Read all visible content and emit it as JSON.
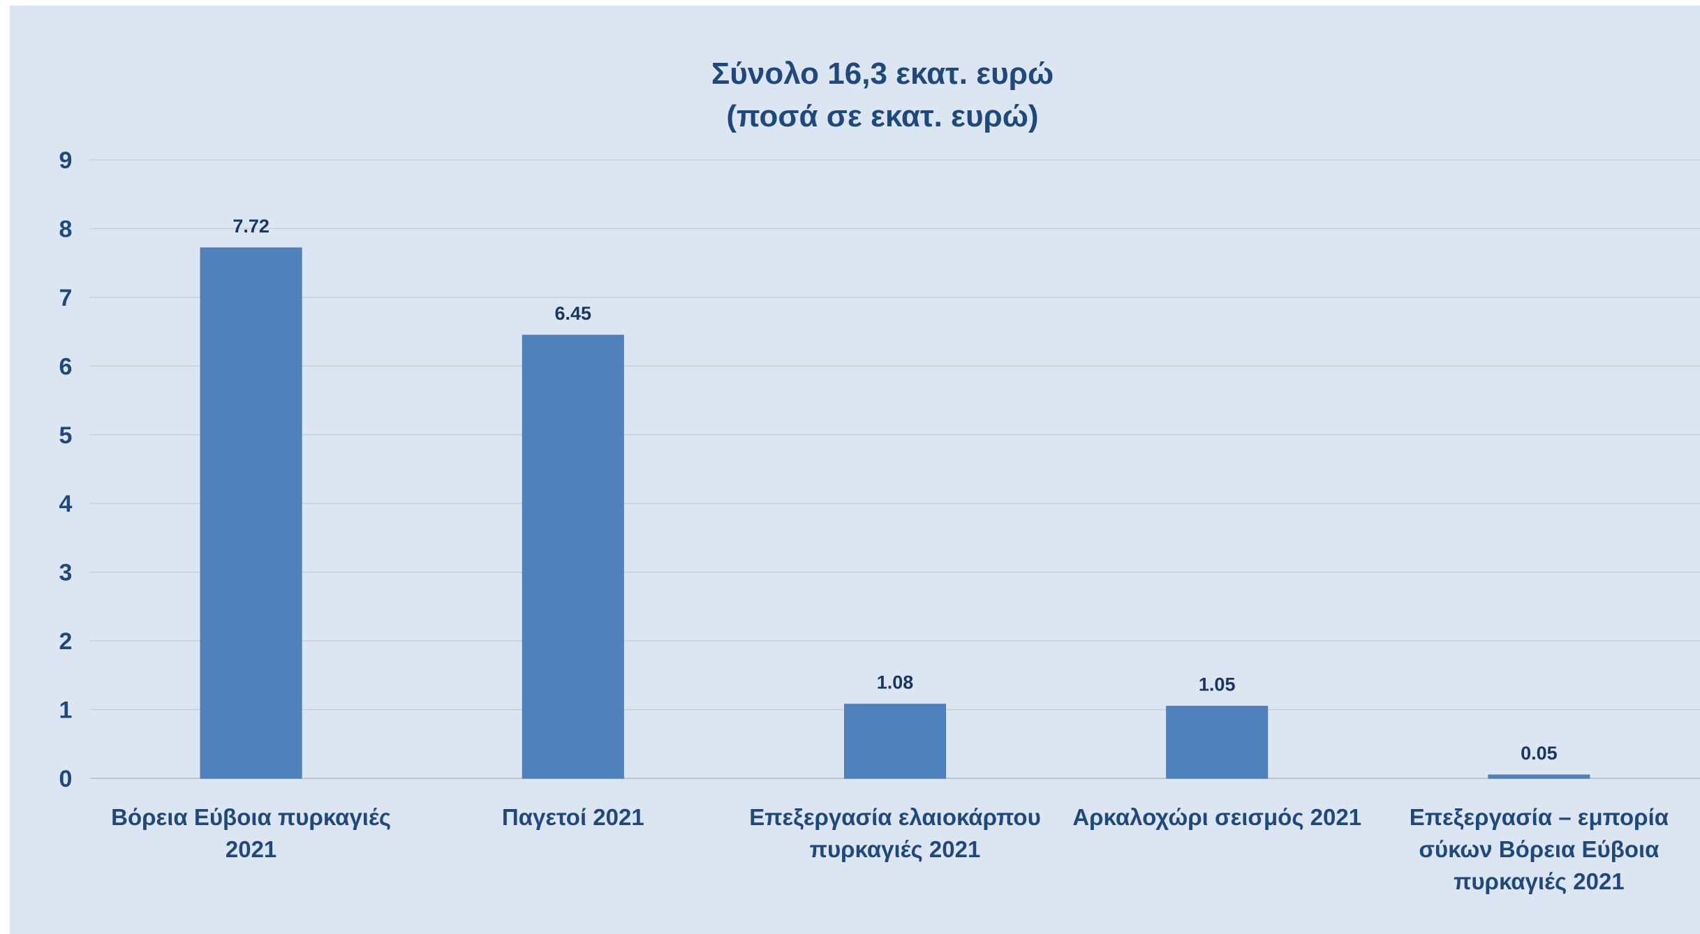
{
  "chart_data": {
    "type": "bar",
    "title": [
      "Σύνολο 16,3 εκατ. ευρώ",
      "(ποσά σε εκατ. ευρώ)"
    ],
    "categories": [
      [
        "Βόρεια Εύβοια πυρκαγιές",
        "2021"
      ],
      [
        "Παγετοί 2021"
      ],
      [
        "Επεξεργασία ελαιοκάρπου",
        "πυρκαγιές 2021"
      ],
      [
        "Αρκαλοχώρι σεισμός 2021"
      ],
      [
        "Επεξεργασία – εμπορία",
        "σύκων Βόρεια Εύβοια",
        "πυρκαγιές 2021"
      ]
    ],
    "values": [
      7.72,
      6.45,
      1.08,
      1.05,
      0.05
    ],
    "data_labels": [
      "7.72",
      "6.45",
      "1.08",
      "1.05",
      "0.05"
    ],
    "yticks": [
      0,
      1,
      2,
      3,
      4,
      5,
      6,
      7,
      8,
      9
    ],
    "ylim": [
      0,
      9
    ],
    "grid": true,
    "bar_color": "#4f81bd",
    "background_color": "#dce6f2"
  }
}
